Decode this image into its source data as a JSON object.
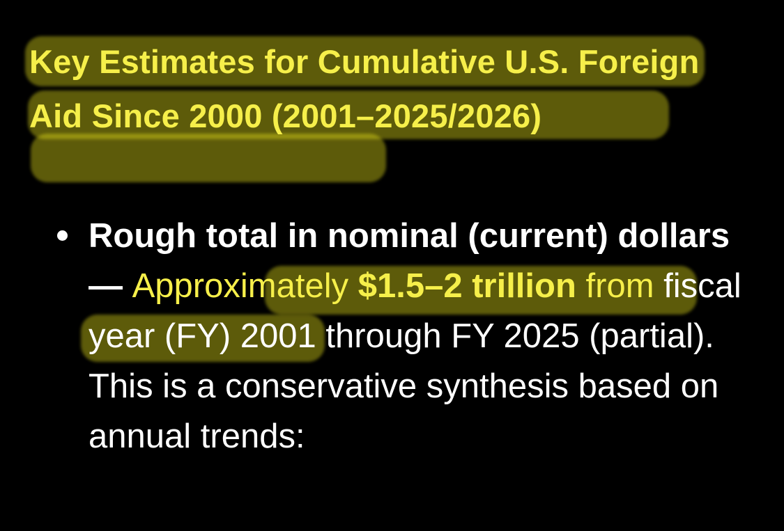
{
  "heading": {
    "text": "Key Estimates for Cumulative U.S. Foreign Aid Since 2000 (2001–2025/2026)"
  },
  "bullet": {
    "lead": "Rough total in nominal (current) dollars",
    "dash": " — ",
    "approx": "Approximately ",
    "amount": "$1.5–2 trillion",
    "from": " from",
    "rest": " fiscal year (FY) 2001 through FY 2025 (partial). This is a conservative synthesis based on annual trends:"
  },
  "colors": {
    "background": "#000000",
    "highlight": "#f4ee1c",
    "highlighted_text": "#f6ef4a",
    "body_text": "#ffffff"
  }
}
